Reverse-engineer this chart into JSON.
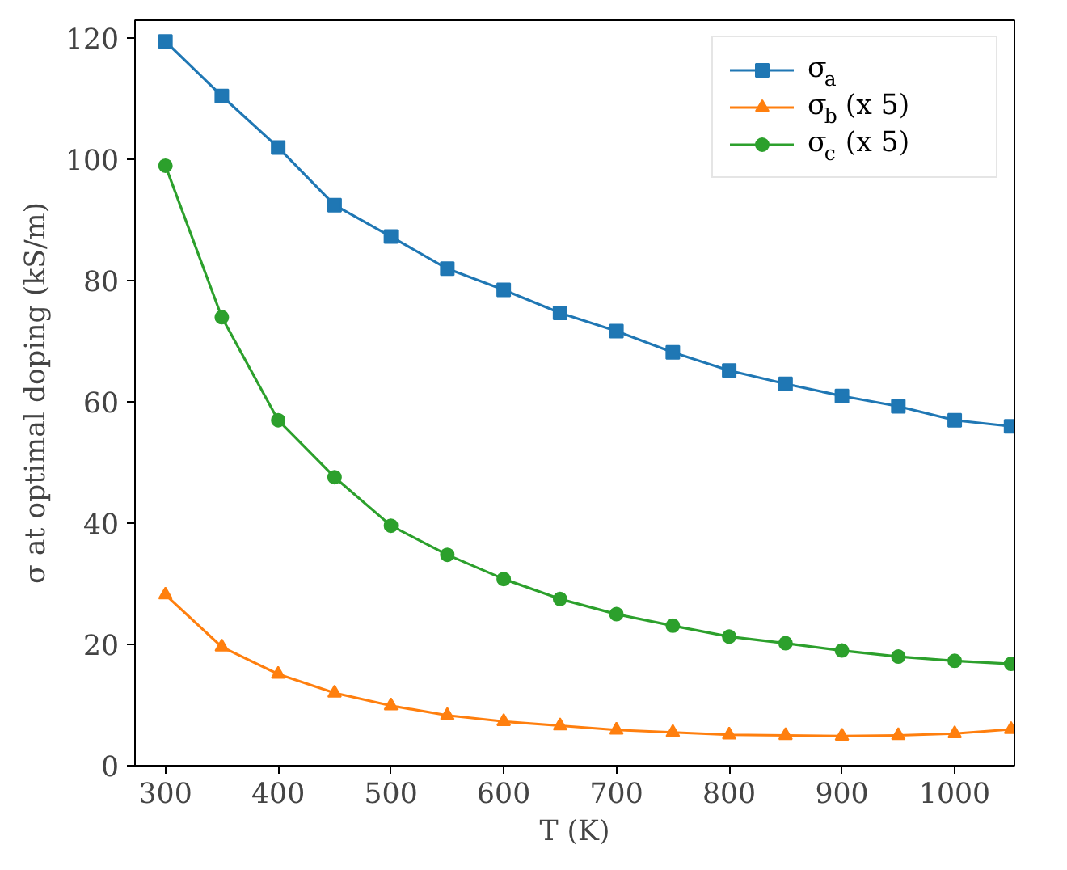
{
  "chart_data": {
    "type": "line",
    "xlabel": "T (K)",
    "ylabel": "σ at optimal doping (kS/m)",
    "x": [
      300,
      350,
      400,
      450,
      500,
      550,
      600,
      650,
      700,
      750,
      800,
      850,
      900,
      950,
      1000,
      1050
    ],
    "xlim": [
      273,
      1053
    ],
    "xticks": [
      300,
      400,
      500,
      600,
      700,
      800,
      900,
      1000
    ],
    "ylim": [
      0,
      123
    ],
    "yticks": [
      0,
      20,
      40,
      60,
      80,
      100,
      120
    ],
    "grid": false,
    "legend": "top right",
    "series": [
      {
        "name": "σ$_{a}$",
        "color": "#1f77b4",
        "marker": "square",
        "values": [
          119.5,
          110.5,
          102,
          92.5,
          87.3,
          82,
          78.5,
          74.7,
          71.7,
          68.2,
          65.2,
          63,
          61,
          59.3,
          57,
          56
        ]
      },
      {
        "name": "σ$_{b}$ (x 5)",
        "color": "#ff7f0e",
        "marker": "triangle",
        "values": [
          28.2,
          19.6,
          15.1,
          12,
          9.9,
          8.3,
          7.3,
          6.6,
          5.9,
          5.5,
          5.1,
          5.0,
          4.9,
          5.0,
          5.3,
          6.0
        ]
      },
      {
        "name": "σ$_{c}$ (x 5)",
        "color": "#2ca02c",
        "marker": "circle",
        "values": [
          99,
          74,
          57,
          47.6,
          39.6,
          34.8,
          30.8,
          27.5,
          25,
          23.1,
          21.3,
          20.2,
          19,
          18,
          17.3,
          16.8
        ]
      }
    ]
  }
}
